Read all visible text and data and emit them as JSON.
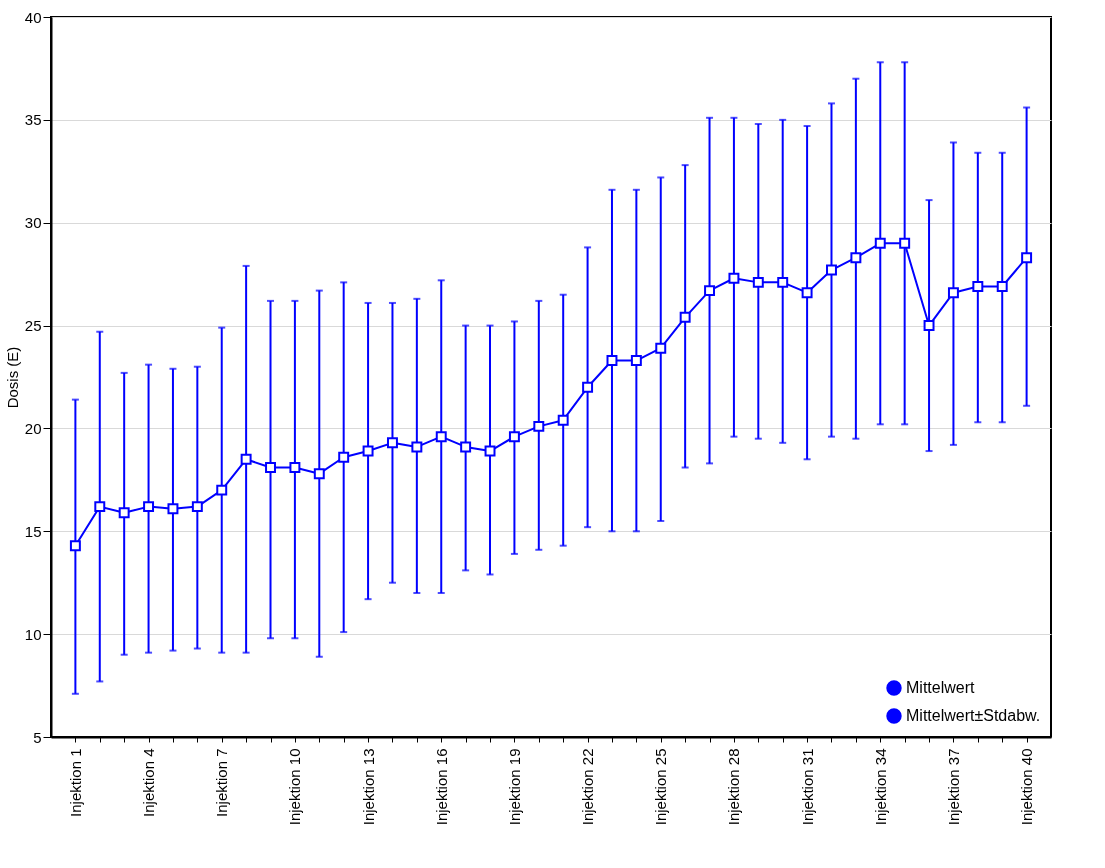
{
  "chart_data": {
    "type": "line",
    "ylabel": "Dosis (E)",
    "categories": [
      "Injektion 1",
      null,
      null,
      "Injektion 4",
      null,
      null,
      "Injektion 7",
      null,
      null,
      "Injektion 10",
      null,
      null,
      "Injektion 13",
      null,
      null,
      "Injektion 16",
      null,
      null,
      "Injektion 19",
      null,
      null,
      "Injektion 22",
      null,
      null,
      "Injektion 25",
      null,
      null,
      "Injektion 28",
      null,
      null,
      "Injektion 31",
      null,
      null,
      "Injektion 34",
      null,
      null,
      "Injektion 37",
      null,
      null,
      "Injektion 40"
    ],
    "series": [
      {
        "name": "Mittelwert",
        "color": "#0000ff",
        "values": [
          14.3,
          16.2,
          15.9,
          16.2,
          16.1,
          16.2,
          17.0,
          18.5,
          18.1,
          18.1,
          17.8,
          18.6,
          18.9,
          19.3,
          19.1,
          19.6,
          19.1,
          18.9,
          19.6,
          20.1,
          20.4,
          22.0,
          23.3,
          23.3,
          23.9,
          25.4,
          26.7,
          27.3,
          27.1,
          27.1,
          26.6,
          27.7,
          28.3,
          29.0,
          29.0,
          25.0,
          26.6,
          26.9,
          26.9,
          28.3
        ],
        "errors": [
          [
            7.1,
            21.4
          ],
          [
            7.7,
            24.7
          ],
          [
            9.0,
            22.7
          ],
          [
            9.1,
            23.1
          ],
          [
            9.2,
            22.9
          ],
          [
            9.3,
            23.0
          ],
          [
            9.1,
            24.9
          ],
          [
            9.1,
            27.9
          ],
          [
            9.8,
            26.2
          ],
          [
            9.8,
            26.2
          ],
          [
            8.9,
            26.7
          ],
          [
            10.1,
            27.1
          ],
          [
            11.7,
            26.1
          ],
          [
            12.5,
            26.1
          ],
          [
            12.0,
            26.3
          ],
          [
            12.0,
            27.2
          ],
          [
            13.1,
            25.0
          ],
          [
            12.9,
            25.0
          ],
          [
            13.9,
            25.2
          ],
          [
            14.1,
            26.2
          ],
          [
            14.3,
            26.5
          ],
          [
            15.2,
            28.8
          ],
          [
            15.0,
            31.6
          ],
          [
            15.0,
            31.6
          ],
          [
            15.5,
            32.2
          ],
          [
            18.1,
            32.8
          ],
          [
            18.3,
            35.1
          ],
          [
            19.6,
            35.1
          ],
          [
            19.5,
            34.8
          ],
          [
            19.3,
            35.0
          ],
          [
            18.5,
            34.7
          ],
          [
            19.6,
            35.8
          ],
          [
            19.5,
            37.0
          ],
          [
            20.2,
            37.8
          ],
          [
            20.2,
            37.8
          ],
          [
            18.9,
            31.1
          ],
          [
            19.2,
            33.9
          ],
          [
            20.3,
            33.4
          ],
          [
            20.3,
            33.4
          ],
          [
            21.1,
            35.6
          ]
        ]
      }
    ],
    "annotations": [
      "Mittelwert±Stdabw."
    ],
    "ylim": [
      5,
      40
    ],
    "yticks": [
      5,
      10,
      15,
      20,
      25,
      30,
      35,
      40
    ],
    "grid": "y",
    "legend": "bottom right",
    "marker": "square",
    "line_style": "solid"
  }
}
